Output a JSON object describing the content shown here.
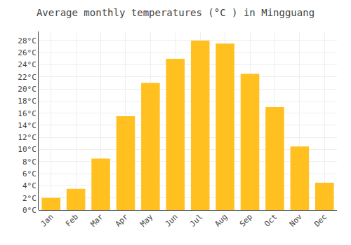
{
  "chart_data": {
    "type": "bar",
    "title": "Average monthly temperatures (°C ) in Mingguang",
    "categories": [
      "Jan",
      "Feb",
      "Mar",
      "Apr",
      "May",
      "Jun",
      "Jul",
      "Aug",
      "Sep",
      "Oct",
      "Nov",
      "Dec"
    ],
    "values": [
      2,
      3.5,
      8.5,
      15.5,
      21,
      25,
      28,
      27.5,
      22.5,
      17,
      10.5,
      4.5
    ],
    "color": "#FFC020",
    "ylim": [
      0,
      29.5
    ],
    "yticks": [
      {
        "value": 0,
        "label": "0°C"
      },
      {
        "value": 2,
        "label": "2°C"
      },
      {
        "value": 4,
        "label": "4°C"
      },
      {
        "value": 6,
        "label": "6°C"
      },
      {
        "value": 8,
        "label": "8°C"
      },
      {
        "value": 10,
        "label": "10°C"
      },
      {
        "value": 12,
        "label": "12°C"
      },
      {
        "value": 14,
        "label": "14°C"
      },
      {
        "value": 16,
        "label": "16°C"
      },
      {
        "value": 18,
        "label": "18°C"
      },
      {
        "value": 20,
        "label": "20°C"
      },
      {
        "value": 22,
        "label": "22°C"
      },
      {
        "value": 24,
        "label": "24°C"
      },
      {
        "value": 26,
        "label": "26°C"
      },
      {
        "value": 28,
        "label": "28°C"
      }
    ],
    "grid": true
  }
}
